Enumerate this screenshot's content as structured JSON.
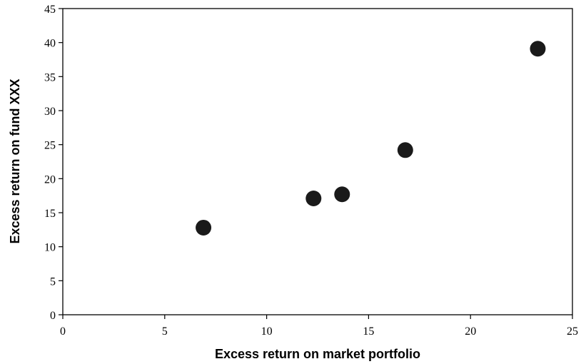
{
  "chart_data": {
    "type": "scatter",
    "title": "",
    "xlabel": "Excess return on market portfolio",
    "ylabel": "Excess return on fund XXX",
    "xlim": [
      0,
      25
    ],
    "ylim": [
      0,
      45
    ],
    "xticks": [
      0,
      5,
      10,
      15,
      20,
      25
    ],
    "yticks": [
      0,
      5,
      10,
      15,
      20,
      25,
      30,
      35,
      40,
      45
    ],
    "xtick_labels": [
      "0",
      "5",
      "10",
      "15",
      "20",
      "25"
    ],
    "ytick_labels": [
      "0",
      "5",
      "10",
      "15",
      "20",
      "25",
      "30",
      "35",
      "40",
      "45"
    ],
    "grid": false,
    "legend": "none",
    "marker_color": "#1a1a1a",
    "series": [
      {
        "points": [
          {
            "x": 6.9,
            "y": 12.8
          },
          {
            "x": 12.3,
            "y": 17.1
          },
          {
            "x": 13.7,
            "y": 17.7
          },
          {
            "x": 16.8,
            "y": 24.2
          },
          {
            "x": 23.3,
            "y": 39.1
          }
        ]
      }
    ]
  }
}
